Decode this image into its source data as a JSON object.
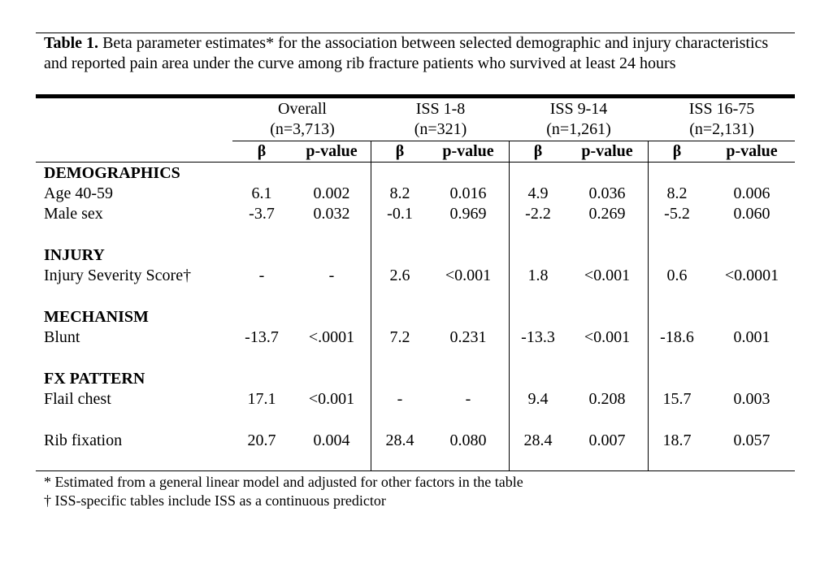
{
  "table": {
    "caption_label": "Table 1.",
    "caption_text": " Beta parameter estimates* for the association between selected demographic and injury characteristics and reported pain area under the curve among rib fracture patients who survived at least 24 hours",
    "groups": [
      {
        "name": "Overall",
        "n": "(n=3,713)"
      },
      {
        "name": "ISS 1-8",
        "n": "(n=321)"
      },
      {
        "name": "ISS 9-14",
        "n": "(n=1,261)"
      },
      {
        "name": "ISS 16-75",
        "n": "(n=2,131)"
      }
    ],
    "beta_label": "β",
    "pvalue_label": "p-value",
    "sections": [
      {
        "heading": "DEMOGRAPHICS"
      },
      {
        "heading": "INJURY"
      },
      {
        "heading": "MECHANISM"
      },
      {
        "heading": "FX PATTERN"
      }
    ],
    "rows": [
      {
        "label": "Age 40-59",
        "values": [
          "6.1",
          "0.002",
          "8.2",
          "0.016",
          "4.9",
          "0.036",
          "8.2",
          "0.006"
        ]
      },
      {
        "label": "Male sex",
        "values": [
          "-3.7",
          "0.032",
          "-0.1",
          "0.969",
          "-2.2",
          "0.269",
          "-5.2",
          "0.060"
        ]
      },
      {
        "label": "Injury Severity Score†",
        "values": [
          "-",
          "-",
          "2.6",
          "<0.001",
          "1.8",
          "<0.001",
          "0.6",
          "<0.0001"
        ]
      },
      {
        "label": "Blunt",
        "values": [
          "-13.7",
          "<.0001",
          "7.2",
          "0.231",
          "-13.3",
          "<0.001",
          "-18.6",
          "0.001"
        ]
      },
      {
        "label": "Flail chest",
        "values": [
          "17.1",
          "<0.001",
          "-",
          "-",
          "9.4",
          "0.208",
          "15.7",
          "0.003"
        ]
      },
      {
        "label": "Rib fixation",
        "values": [
          "20.7",
          "0.004",
          "28.4",
          "0.080",
          "28.4",
          "0.007",
          "18.7",
          "0.057"
        ]
      }
    ],
    "footnotes": [
      "* Estimated from a general linear model and adjusted for other factors in the table",
      "† ISS-specific tables include ISS as a continuous predictor"
    ]
  }
}
